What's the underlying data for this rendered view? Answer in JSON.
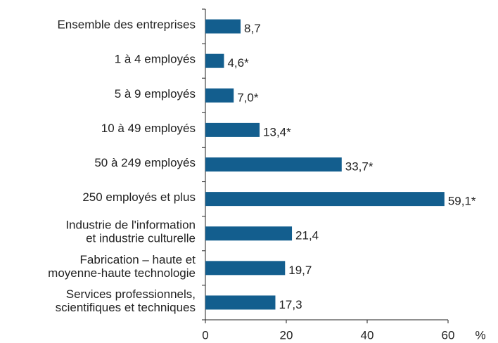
{
  "chart_data": {
    "type": "bar",
    "orientation": "horizontal",
    "categories": [
      "Ensemble des entreprises",
      "1 à 4 employés",
      "5 à 9 employés",
      "10 à 49 employés",
      "50 à 249 employés",
      "250 employés et plus",
      "Industrie de l'information\net industrie culturelle",
      "Fabrication – haute et\nmoyenne-haute technologie",
      "Services professionnels,\nscientifiques et techniques"
    ],
    "values": [
      8.7,
      4.6,
      7.0,
      13.4,
      33.7,
      59.1,
      21.4,
      19.7,
      17.3
    ],
    "value_labels": [
      "8,7",
      "4,6*",
      "7,0*",
      "13,4*",
      "33,7*",
      "59,1*",
      "21,4",
      "19,7",
      "17,3"
    ],
    "color": "#135e8e",
    "xlabel": "%",
    "xlim": [
      0,
      60
    ],
    "xticks": [
      0,
      20,
      40,
      60
    ]
  }
}
